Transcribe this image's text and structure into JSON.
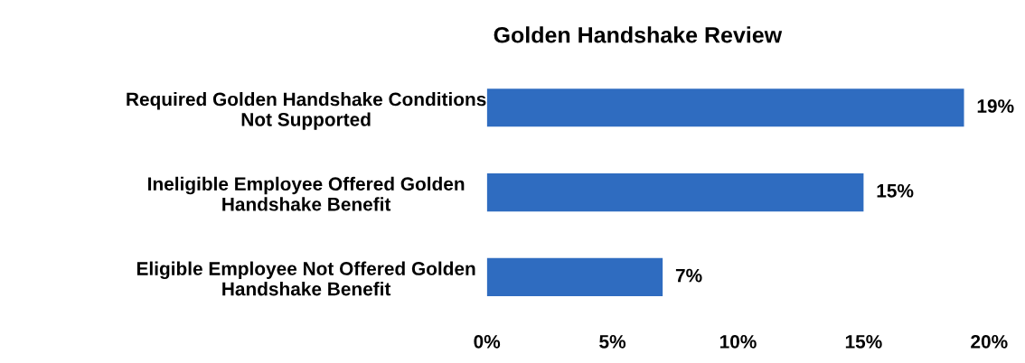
{
  "chart_data": {
    "type": "bar",
    "orientation": "horizontal",
    "title": "Golden Handshake Review",
    "categories": [
      "Required Golden Handshake Conditions\nNot Supported",
      "Ineligible Employee Offered Golden\nHandshake Benefit",
      "Eligible Employee Not Offered Golden\nHandshake Benefit"
    ],
    "values": [
      19,
      15,
      7
    ],
    "color": "#2f6cc0",
    "value_labels": [
      "19%",
      "15%",
      "7%"
    ],
    "xlim": [
      0,
      20
    ],
    "xticks": [
      {
        "value": 0,
        "label": "0%"
      },
      {
        "value": 5,
        "label": "5%"
      },
      {
        "value": 10,
        "label": "10%"
      },
      {
        "value": 15,
        "label": "15%"
      },
      {
        "value": 20,
        "label": "20%"
      }
    ],
    "grid": false,
    "legend": false
  }
}
